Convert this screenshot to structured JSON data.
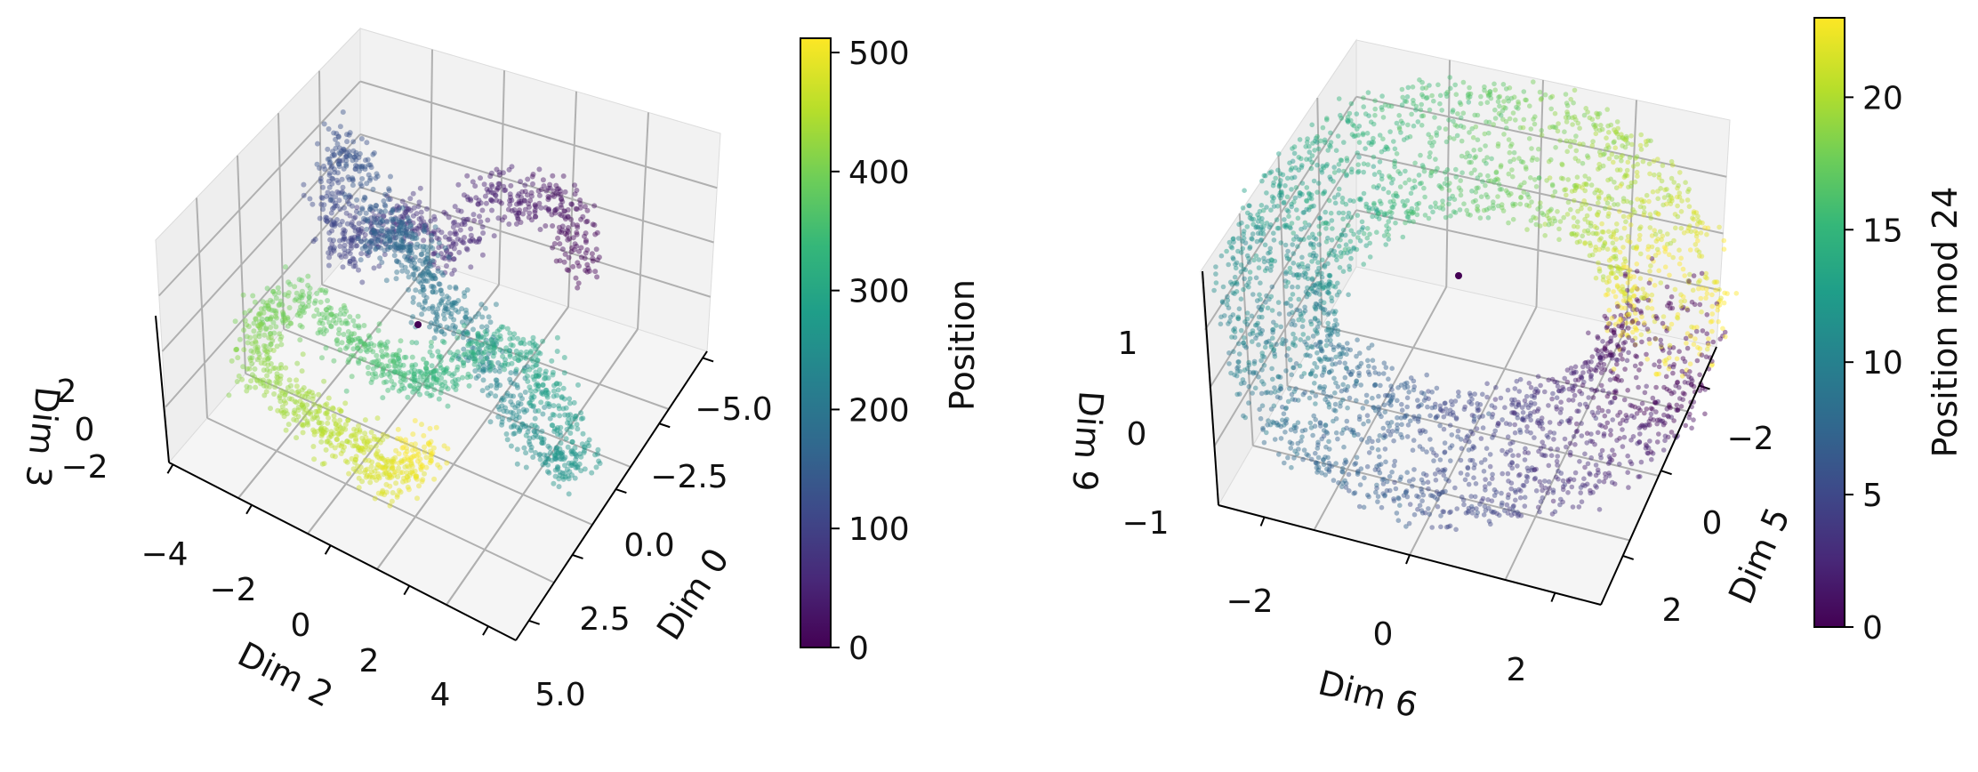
{
  "chart_data": [
    {
      "type": "scatter",
      "subtype": "3d",
      "x_label": "Dim 0",
      "y_label": "Dim 2",
      "z_label": "Dim 3",
      "x_ticks": [
        "−5.0",
        "−2.5",
        "0.0",
        "2.5",
        "5.0"
      ],
      "y_ticks": [
        "−4",
        "−2",
        "0",
        "2",
        "4"
      ],
      "z_ticks": [
        "2",
        "0",
        "−2"
      ],
      "colorbar": {
        "label": "Position",
        "ticks": [
          "0",
          "100",
          "200",
          "300",
          "400",
          "500"
        ],
        "range": [
          0,
          512
        ],
        "colormap": "viridis"
      },
      "description": "Points form a winding curve through 3D space colored by sequence position 0–512"
    },
    {
      "type": "scatter",
      "subtype": "3d",
      "x_label": "Dim 5",
      "y_label": "Dim 6",
      "z_label": "Dim 9",
      "x_ticks": [
        "−2",
        "0",
        "2"
      ],
      "y_ticks": [
        "−2",
        "0",
        "2"
      ],
      "z_ticks": [
        "1",
        "0",
        "−1"
      ],
      "colorbar": {
        "label": "Position mod 24",
        "ticks": [
          "0",
          "5",
          "10",
          "15",
          "20"
        ],
        "range": [
          0,
          23
        ],
        "colormap": "viridis"
      },
      "description": "Points form a torus-like ring colored by position mod 24"
    }
  ],
  "colors": {
    "viridis": [
      "#440154",
      "#482878",
      "#3e4989",
      "#31688e",
      "#26828e",
      "#1f9e89",
      "#35b779",
      "#6ece58",
      "#b5de2b",
      "#fde725"
    ],
    "pane": "#f2f2f2",
    "grid": "#b0b0b0"
  }
}
